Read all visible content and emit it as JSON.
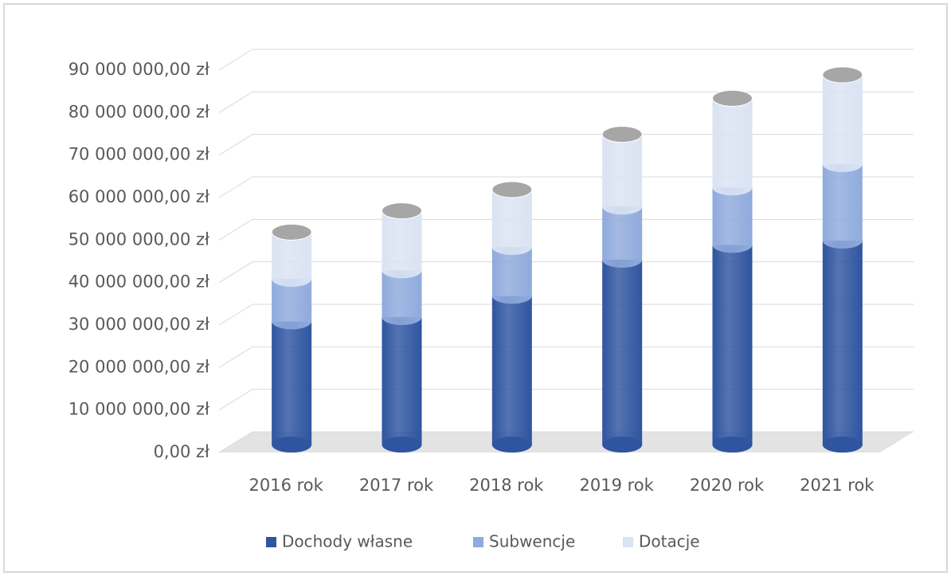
{
  "chart_data": {
    "type": "bar3d_stacked",
    "categories": [
      "2016 rok",
      "2017 rok",
      "2018 rok",
      "2019 rok",
      "2020 rok",
      "2021 rok"
    ],
    "series": [
      {
        "name": "Dochody własne",
        "color": "#2f55a0",
        "values": [
          29000000,
          30000000,
          35000000,
          43500000,
          47000000,
          48000000
        ]
      },
      {
        "name": "Subwencje",
        "color": "#8faadc",
        "values": [
          10000000,
          11000000,
          11500000,
          12500000,
          13500000,
          18000000
        ]
      },
      {
        "name": "Dotacje",
        "color": "#dae3f3",
        "values": [
          11000000,
          14000000,
          13500000,
          17000000,
          21000000,
          21000000
        ]
      }
    ],
    "ylim": [
      0,
      90000000
    ],
    "yticks": [
      {
        "value": 0,
        "label": "0,00 zł"
      },
      {
        "value": 10000000,
        "label": "10 000 000,00 zł"
      },
      {
        "value": 20000000,
        "label": "20 000 000,00 zł"
      },
      {
        "value": 30000000,
        "label": "30 000 000,00 zł"
      },
      {
        "value": 40000000,
        "label": "40 000 000,00 zł"
      },
      {
        "value": 50000000,
        "label": "50 000 000,00 zł"
      },
      {
        "value": 60000000,
        "label": "60 000 000,00 zł"
      },
      {
        "value": 70000000,
        "label": "70 000 000,00 zł"
      },
      {
        "value": 80000000,
        "label": "80 000 000,00 zł"
      },
      {
        "value": 90000000,
        "label": "90 000 000,00 zł"
      }
    ],
    "grid": true,
    "legend": "bottom"
  }
}
